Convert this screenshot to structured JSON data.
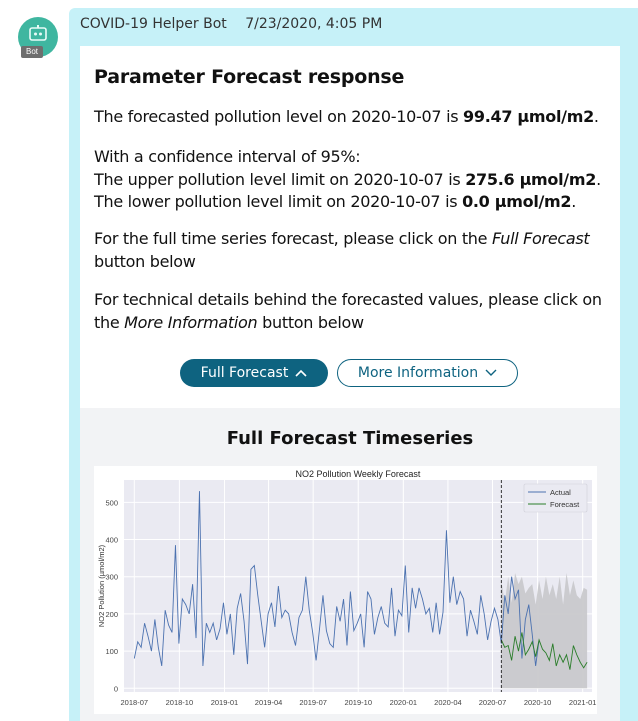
{
  "message": {
    "sender": "COVID-19 Helper Bot",
    "timestamp": "7/23/2020, 4:05 PM",
    "avatar_label": "Bot"
  },
  "card": {
    "title": "Parameter Forecast response",
    "forecast_text": "The forecasted pollution level on 2020-10-07 is",
    "forecast_value": "99.47 µmol/m2",
    "ci_intro": "With a confidence interval of 95%:",
    "upper_text": "The upper pollution level limit on 2020-10-07 is",
    "upper_value": "275.6 µmol/m2",
    "lower_text": "The lower pollution level limit on 2020-10-07 is",
    "lower_value": "0.0 µmol/m2",
    "full_forecast_text_1": "For the full time series forecast, please click on the",
    "full_forecast_em": "Full Forecast",
    "full_forecast_text_2": "button below",
    "more_info_text_1": "For technical details behind the forecasted values, please click on the",
    "more_info_em": "More Information",
    "more_info_text_2": "button below",
    "buttons": {
      "full_forecast": "Full Forecast",
      "more_information": "More Information"
    },
    "chart_heading": "Full Forecast Timeseries"
  },
  "chart_data": {
    "type": "line",
    "title": "NO2 Pollution Weekly Forecast",
    "ylabel": "NO2 Pollution (µmol/m2)",
    "xlabel": "",
    "ylim": [
      -10,
      560
    ],
    "xlim": [
      "2018-06-10",
      "2021-01-20"
    ],
    "yticks": [
      0,
      100,
      200,
      300,
      400,
      500
    ],
    "xticks": [
      "2018-07",
      "2018-10",
      "2019-01",
      "2019-04",
      "2019-07",
      "2019-10",
      "2020-01",
      "2020-04",
      "2020-07",
      "2020-10",
      "2021-01"
    ],
    "legend": [
      "Actual",
      "Forecast"
    ],
    "legend_placement": "top-right",
    "grid": true,
    "split_date": "2020-07-19",
    "colors": {
      "actual": "#4c72b0",
      "forecast": "#2a7d2a",
      "band": "#c9c9cc"
    },
    "series": [
      {
        "name": "Actual",
        "start": "2018-07-01",
        "step_days": 7,
        "values": [
          80,
          125,
          110,
          175,
          140,
          100,
          185,
          110,
          60,
          210,
          170,
          150,
          385,
          120,
          240,
          225,
          200,
          280,
          135,
          530,
          60,
          175,
          150,
          175,
          130,
          160,
          230,
          145,
          200,
          90,
          215,
          255,
          180,
          65,
          320,
          330,
          250,
          180,
          110,
          200,
          230,
          165,
          275,
          190,
          210,
          200,
          150,
          115,
          190,
          210,
          300,
          210,
          150,
          75,
          160,
          250,
          155,
          120,
          110,
          220,
          180,
          240,
          115,
          260,
          155,
          175,
          200,
          110,
          260,
          240,
          145,
          190,
          220,
          175,
          165,
          270,
          140,
          210,
          195,
          330,
          150,
          270,
          215,
          270,
          240,
          200,
          215,
          150,
          230,
          145,
          205,
          425,
          230,
          300,
          225,
          260,
          240,
          140,
          210,
          180,
          145,
          250,
          200,
          130,
          180,
          215,
          185,
          120,
          250,
          200,
          300,
          240,
          265,
          80,
          185,
          225,
          145,
          60,
          130
        ]
      },
      {
        "name": "Forecast",
        "start": "2020-07-19",
        "step_days": 7,
        "values": [
          130,
          110,
          115,
          75,
          140,
          100,
          150,
          90,
          105,
          125,
          85,
          130,
          105,
          95,
          75,
          120,
          60,
          90,
          70,
          90,
          50,
          115,
          90,
          70,
          55,
          70
        ]
      }
    ],
    "forecast_band": {
      "start": "2020-07-19",
      "step_days": 7,
      "upper": [
        290,
        230,
        300,
        230,
        310,
        280,
        300,
        255,
        270,
        280,
        225,
        290,
        240,
        300,
        250,
        280,
        240,
        300,
        225,
        310,
        250,
        290,
        250,
        240,
        270,
        265
      ],
      "lower": [
        0,
        0,
        0,
        0,
        0,
        0,
        0,
        0,
        0,
        0,
        0,
        0,
        0,
        0,
        0,
        0,
        0,
        0,
        0,
        0,
        0,
        0,
        0,
        0,
        0,
        0
      ]
    }
  }
}
